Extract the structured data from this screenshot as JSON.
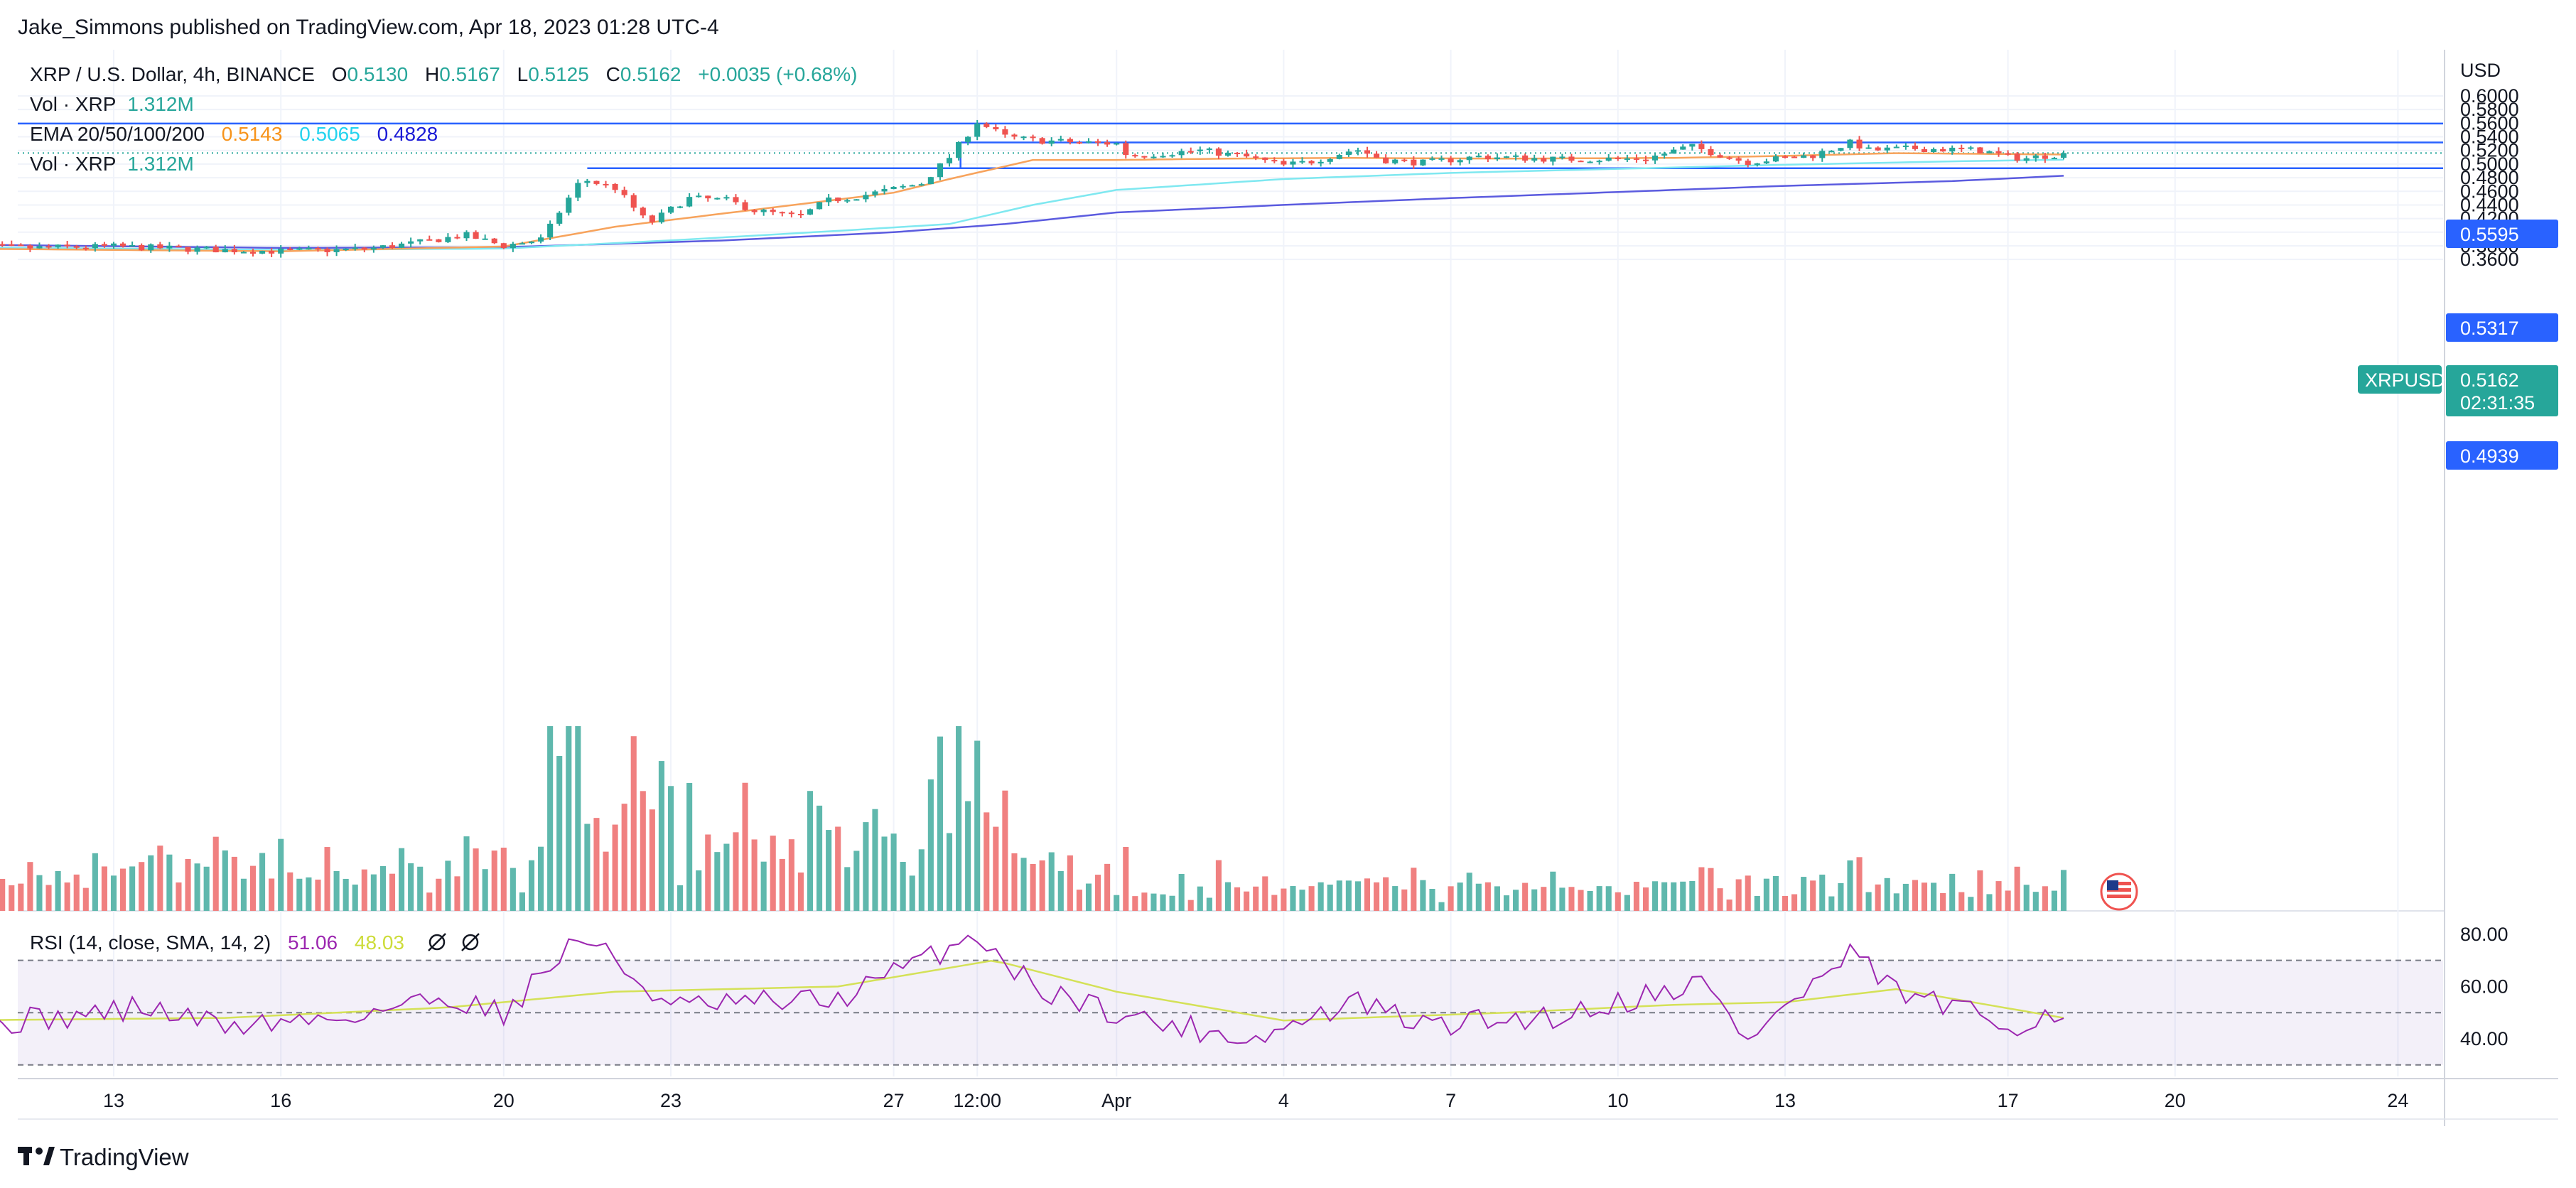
{
  "header": {
    "publisher": "Jake_Simmons published on TradingView.com, Apr 18, 2023 01:28 UTC-4"
  },
  "legend": {
    "symbol": "XRP / U.S. Dollar, 4h, BINANCE",
    "o_label": "O",
    "o_value": "0.5130",
    "h_label": "H",
    "h_value": "0.5167",
    "l_label": "L",
    "l_value": "0.5125",
    "c_label": "C",
    "c_value": "0.5162",
    "change": "+0.0035 (+0.68%)",
    "vol1_label": "Vol · XRP",
    "vol1_value": "1.312M",
    "ema_label": "EMA 20/50/100/200",
    "ema_v1": "0.5143",
    "ema_v2": "0.5065",
    "ema_v3": "0.4828",
    "vol2_label": "Vol · XRP",
    "vol2_value": "1.312M",
    "rsi_label": "RSI (14, close, SMA, 14, 2)",
    "rsi_v1": "51.06",
    "rsi_v2": "48.03"
  },
  "price_axis": {
    "currency": "USD",
    "ticks": [
      "0.6000",
      "0.5800",
      "0.5600",
      "0.5400",
      "0.5200",
      "0.5000",
      "0.4800",
      "0.4600",
      "0.4400",
      "0.4200",
      "0.4000",
      "0.3800",
      "0.3600"
    ]
  },
  "rsi_axis": {
    "ticks": [
      "80.00",
      "60.00",
      "40.00"
    ]
  },
  "time_axis": {
    "labels": [
      {
        "label": "13",
        "day": 13
      },
      {
        "label": "16",
        "day": 16
      },
      {
        "label": "20",
        "day": 20
      },
      {
        "label": "23",
        "day": 23
      },
      {
        "label": "27",
        "day": 27
      },
      {
        "label": "12:00",
        "day": 28.5
      },
      {
        "label": "Apr",
        "day": 31
      },
      {
        "label": "4",
        "day": 34
      },
      {
        "label": "7",
        "day": 37
      },
      {
        "label": "10",
        "day": 40
      },
      {
        "label": "13",
        "day": 43
      },
      {
        "label": "17",
        "day": 47
      },
      {
        "label": "20",
        "day": 50
      },
      {
        "label": "24",
        "day": 54
      }
    ]
  },
  "tags": {
    "level1": "0.5595",
    "level2": "0.5317",
    "level3": "0.4939",
    "symbol": "XRPUSD",
    "last_price": "0.5162",
    "countdown": "02:31:35"
  },
  "colors": {
    "up": "#26a69a",
    "down": "#ef5350",
    "vol_up": "#5fb8ad",
    "vol_down": "#f08080",
    "ema20": "#f7a35c",
    "ema50": "#7fe8f0",
    "ema100": "#5b5bdf",
    "ema200": "#1a1ad6",
    "hline": "#2962ff",
    "rsi": "#9c27b0",
    "rsi_sma": "#d4e157"
  },
  "footer": {
    "brand": "TradingView"
  },
  "chart_data": {
    "type": "candlestick",
    "title": "XRP / U.S. Dollar, 4h, BINANCE",
    "x_unit": "day (March 2023; 32 = Apr 1)",
    "ylim": [
      0.355,
      0.605
    ],
    "horizontal_levels": [
      0.5595,
      0.5317,
      0.4939
    ],
    "anchors": [
      {
        "day": 10.0,
        "price": 0.38
      },
      {
        "day": 11.5,
        "price": 0.377
      },
      {
        "day": 13.0,
        "price": 0.379
      },
      {
        "day": 14.5,
        "price": 0.375
      },
      {
        "day": 16.0,
        "price": 0.372
      },
      {
        "day": 17.5,
        "price": 0.375
      },
      {
        "day": 18.5,
        "price": 0.385
      },
      {
        "day": 19.3,
        "price": 0.396
      },
      {
        "day": 20.0,
        "price": 0.38
      },
      {
        "day": 20.7,
        "price": 0.39
      },
      {
        "day": 21.0,
        "price": 0.43
      },
      {
        "day": 21.4,
        "price": 0.478
      },
      {
        "day": 22.0,
        "price": 0.465
      },
      {
        "day": 22.6,
        "price": 0.412
      },
      {
        "day": 23.3,
        "price": 0.45
      },
      {
        "day": 24.0,
        "price": 0.447
      },
      {
        "day": 24.5,
        "price": 0.432
      },
      {
        "day": 25.3,
        "price": 0.422
      },
      {
        "day": 25.8,
        "price": 0.446
      },
      {
        "day": 26.5,
        "price": 0.455
      },
      {
        "day": 27.5,
        "price": 0.472
      },
      {
        "day": 28.0,
        "price": 0.51
      },
      {
        "day": 28.5,
        "price": 0.562
      },
      {
        "day": 29.0,
        "price": 0.54
      },
      {
        "day": 29.5,
        "price": 0.535
      },
      {
        "day": 30.3,
        "price": 0.532
      },
      {
        "day": 31.0,
        "price": 0.53
      },
      {
        "day": 31.2,
        "price": 0.512
      },
      {
        "day": 32.5,
        "price": 0.52
      },
      {
        "day": 33.3,
        "price": 0.511
      },
      {
        "day": 34.0,
        "price": 0.498
      },
      {
        "day": 34.5,
        "price": 0.504
      },
      {
        "day": 35.3,
        "price": 0.522
      },
      {
        "day": 35.8,
        "price": 0.506
      },
      {
        "day": 36.5,
        "price": 0.502
      },
      {
        "day": 37.5,
        "price": 0.511
      },
      {
        "day": 39.0,
        "price": 0.507
      },
      {
        "day": 40.5,
        "price": 0.508
      },
      {
        "day": 41.3,
        "price": 0.526
      },
      {
        "day": 42.3,
        "price": 0.503
      },
      {
        "day": 43.5,
        "price": 0.513
      },
      {
        "day": 44.2,
        "price": 0.532
      },
      {
        "day": 44.5,
        "price": 0.52
      },
      {
        "day": 45.3,
        "price": 0.523
      },
      {
        "day": 46.5,
        "price": 0.52
      },
      {
        "day": 47.0,
        "price": 0.511
      },
      {
        "day": 47.3,
        "price": 0.508
      },
      {
        "day": 48.0,
        "price": 0.516
      }
    ],
    "ema20": [
      [
        10,
        0.376
      ],
      [
        16,
        0.372
      ],
      [
        20,
        0.379
      ],
      [
        22,
        0.408
      ],
      [
        25,
        0.438
      ],
      [
        27,
        0.458
      ],
      [
        28,
        0.478
      ],
      [
        29.5,
        0.506
      ],
      [
        31,
        0.506
      ],
      [
        33,
        0.508
      ],
      [
        35,
        0.509
      ],
      [
        38,
        0.508
      ],
      [
        41,
        0.509
      ],
      [
        43,
        0.512
      ],
      [
        45,
        0.516
      ],
      [
        48,
        0.514
      ]
    ],
    "ema50": [
      [
        10,
        0.378
      ],
      [
        16,
        0.374
      ],
      [
        20,
        0.376
      ],
      [
        23,
        0.388
      ],
      [
        26,
        0.402
      ],
      [
        28,
        0.412
      ],
      [
        29.5,
        0.44
      ],
      [
        31,
        0.462
      ],
      [
        34,
        0.478
      ],
      [
        37,
        0.487
      ],
      [
        40,
        0.493
      ],
      [
        43,
        0.499
      ],
      [
        46,
        0.504
      ],
      [
        48,
        0.5065
      ]
    ],
    "ema100": [
      [
        10,
        0.382
      ],
      [
        16,
        0.377
      ],
      [
        20,
        0.378
      ],
      [
        24,
        0.388
      ],
      [
        27,
        0.4
      ],
      [
        29,
        0.412
      ],
      [
        31,
        0.429
      ],
      [
        34,
        0.44
      ],
      [
        37,
        0.45
      ],
      [
        40,
        0.459
      ],
      [
        43,
        0.468
      ],
      [
        46,
        0.475
      ],
      [
        48,
        0.4828
      ]
    ],
    "rsi_anchors": [
      {
        "day": 10,
        "v": 45
      },
      {
        "day": 12,
        "v": 48
      },
      {
        "day": 13.5,
        "v": 52
      },
      {
        "day": 15,
        "v": 45
      },
      {
        "day": 17,
        "v": 48
      },
      {
        "day": 19,
        "v": 56
      },
      {
        "day": 20,
        "v": 50
      },
      {
        "day": 21.4,
        "v": 80
      },
      {
        "day": 23,
        "v": 52
      },
      {
        "day": 26,
        "v": 55
      },
      {
        "day": 28.5,
        "v": 80
      },
      {
        "day": 29.5,
        "v": 60
      },
      {
        "day": 31.5,
        "v": 47
      },
      {
        "day": 33.5,
        "v": 40
      },
      {
        "day": 35.3,
        "v": 54
      },
      {
        "day": 36.5,
        "v": 45
      },
      {
        "day": 39,
        "v": 49
      },
      {
        "day": 41.5,
        "v": 62
      },
      {
        "day": 42.3,
        "v": 40
      },
      {
        "day": 44.2,
        "v": 72
      },
      {
        "day": 45,
        "v": 58
      },
      {
        "day": 47,
        "v": 45
      },
      {
        "day": 48,
        "v": 51
      }
    ],
    "rsi_sma_anchors": [
      {
        "day": 10,
        "v": 47
      },
      {
        "day": 15,
        "v": 48
      },
      {
        "day": 19,
        "v": 52
      },
      {
        "day": 22,
        "v": 58
      },
      {
        "day": 26,
        "v": 60
      },
      {
        "day": 28.8,
        "v": 70
      },
      {
        "day": 31,
        "v": 58
      },
      {
        "day": 34,
        "v": 47
      },
      {
        "day": 38,
        "v": 50
      },
      {
        "day": 41,
        "v": 53
      },
      {
        "day": 43,
        "v": 54
      },
      {
        "day": 45,
        "v": 59
      },
      {
        "day": 48,
        "v": 48
      }
    ]
  }
}
